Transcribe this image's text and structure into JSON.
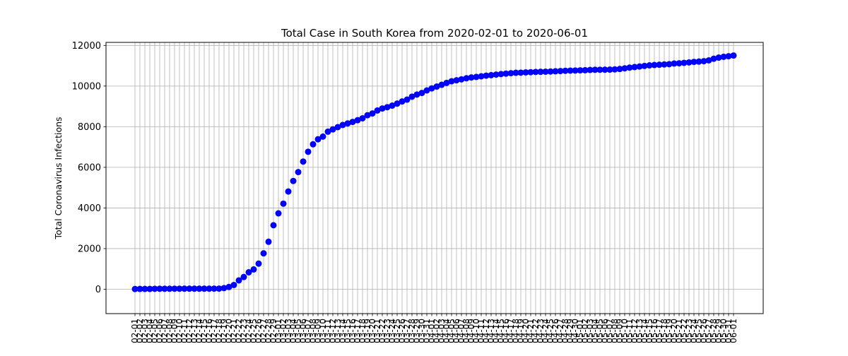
{
  "chart_data": {
    "type": "scatter",
    "title": "Total Case in South Korea from 2020-02-01 to 2020-06-01",
    "xlabel": "",
    "ylabel": "Total Coronavirus Infections",
    "ylim": [
      -1200,
      12150
    ],
    "yticks": [
      0,
      2000,
      4000,
      6000,
      8000,
      10000,
      12000
    ],
    "grid": true,
    "marker_color": "#0000ff",
    "x": [
      "2020-02-01",
      "2020-02-02",
      "2020-02-03",
      "2020-02-04",
      "2020-02-05",
      "2020-02-06",
      "2020-02-07",
      "2020-02-08",
      "2020-02-09",
      "2020-02-10",
      "2020-02-11",
      "2020-02-12",
      "2020-02-13",
      "2020-02-14",
      "2020-02-15",
      "2020-02-16",
      "2020-02-17",
      "2020-02-18",
      "2020-02-19",
      "2020-02-20",
      "2020-02-21",
      "2020-02-22",
      "2020-02-23",
      "2020-02-24",
      "2020-02-25",
      "2020-02-26",
      "2020-02-27",
      "2020-02-28",
      "2020-02-29",
      "2020-03-01",
      "2020-03-02",
      "2020-03-03",
      "2020-03-04",
      "2020-03-05",
      "2020-03-06",
      "2020-03-07",
      "2020-03-08",
      "2020-03-09",
      "2020-03-10",
      "2020-03-11",
      "2020-03-12",
      "2020-03-13",
      "2020-03-14",
      "2020-03-15",
      "2020-03-16",
      "2020-03-17",
      "2020-03-18",
      "2020-03-19",
      "2020-03-20",
      "2020-03-21",
      "2020-03-22",
      "2020-03-23",
      "2020-03-24",
      "2020-03-25",
      "2020-03-26",
      "2020-03-27",
      "2020-03-28",
      "2020-03-29",
      "2020-03-30",
      "2020-03-31",
      "2020-04-01",
      "2020-04-02",
      "2020-04-03",
      "2020-04-04",
      "2020-04-05",
      "2020-04-06",
      "2020-04-07",
      "2020-04-08",
      "2020-04-09",
      "2020-04-10",
      "2020-04-11",
      "2020-04-12",
      "2020-04-13",
      "2020-04-14",
      "2020-04-15",
      "2020-04-16",
      "2020-04-17",
      "2020-04-18",
      "2020-04-19",
      "2020-04-20",
      "2020-04-21",
      "2020-04-22",
      "2020-04-23",
      "2020-04-24",
      "2020-04-25",
      "2020-04-26",
      "2020-04-27",
      "2020-04-28",
      "2020-04-29",
      "2020-04-30",
      "2020-05-01",
      "2020-05-02",
      "2020-05-03",
      "2020-05-04",
      "2020-05-05",
      "2020-05-06",
      "2020-05-07",
      "2020-05-08",
      "2020-05-09",
      "2020-05-10",
      "2020-05-11",
      "2020-05-12",
      "2020-05-13",
      "2020-05-14",
      "2020-05-15",
      "2020-05-16",
      "2020-05-17",
      "2020-05-18",
      "2020-05-19",
      "2020-05-20",
      "2020-05-21",
      "2020-05-22",
      "2020-05-23",
      "2020-05-24",
      "2020-05-25",
      "2020-05-26",
      "2020-05-27",
      "2020-05-28",
      "2020-05-29",
      "2020-05-30",
      "2020-05-31",
      "2020-06-01"
    ],
    "y": [
      12,
      15,
      15,
      16,
      23,
      24,
      24,
      24,
      27,
      27,
      28,
      28,
      28,
      28,
      28,
      29,
      30,
      31,
      58,
      111,
      209,
      436,
      602,
      833,
      977,
      1261,
      1766,
      2337,
      3150,
      3736,
      4212,
      4812,
      5328,
      5766,
      6284,
      6767,
      7134,
      7382,
      7513,
      7755,
      7869,
      7979,
      8086,
      8162,
      8236,
      8320,
      8413,
      8565,
      8652,
      8799,
      8897,
      8961,
      9037,
      9137,
      9241,
      9332,
      9478,
      9583,
      9661,
      9786,
      9887,
      9976,
      10062,
      10156,
      10237,
      10284,
      10331,
      10384,
      10423,
      10450,
      10480,
      10512,
      10537,
      10564,
      10591,
      10613,
      10635,
      10653,
      10661,
      10674,
      10683,
      10694,
      10702,
      10708,
      10718,
      10728,
      10738,
      10752,
      10761,
      10765,
      10774,
      10780,
      10793,
      10801,
      10804,
      10806,
      10810,
      10822,
      10840,
      10874,
      10909,
      10936,
      10962,
      10991,
      11018,
      11037,
      11050,
      11065,
      11078,
      11110,
      11122,
      11142,
      11165,
      11190,
      11206,
      11225,
      11265,
      11344,
      11402,
      11441,
      11468,
      11503
    ]
  }
}
